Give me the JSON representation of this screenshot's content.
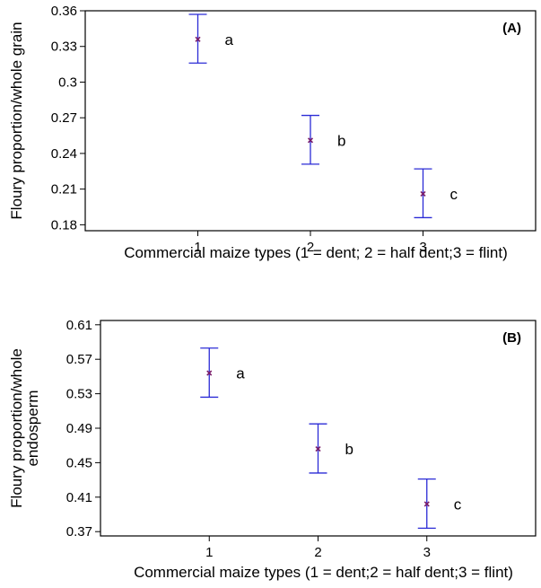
{
  "colors": {
    "errorbar": "#2b2bd6",
    "mean_marker": "#7a1d6a",
    "axis": "#000000"
  },
  "chart_data": [
    {
      "type": "scatter",
      "panel_label": "(A)",
      "xlabel": "Commercial maize types (1 = dent; 2 = half dent;3 = flint)",
      "ylabel": "Floury proportion/whole grain",
      "xlim": [
        0,
        4
      ],
      "ylim": [
        0.175,
        0.36
      ],
      "x_ticks": [
        1,
        2,
        3
      ],
      "x_tick_labels": [
        "1",
        "2",
        "3"
      ],
      "y_ticks": [
        0.18,
        0.21,
        0.24,
        0.27,
        0.3,
        0.33,
        0.36
      ],
      "y_tick_labels": [
        "0.18",
        "0.21",
        "0.24",
        "0.27",
        "0.3",
        "0.33",
        "0.36"
      ],
      "grid": false,
      "points": [
        {
          "x": 1,
          "mean": 0.336,
          "lower": 0.316,
          "upper": 0.357,
          "letter": "a"
        },
        {
          "x": 2,
          "mean": 0.251,
          "lower": 0.231,
          "upper": 0.272,
          "letter": "b"
        },
        {
          "x": 3,
          "mean": 0.206,
          "lower": 0.186,
          "upper": 0.227,
          "letter": "c"
        }
      ]
    },
    {
      "type": "scatter",
      "panel_label": "(B)",
      "xlabel": "Commercial maize types (1 = dent;2 = half dent;3 = flint)",
      "ylabel": [
        "Floury proportion/whole",
        "endosperm"
      ],
      "xlim": [
        0,
        4
      ],
      "ylim": [
        0.365,
        0.615
      ],
      "x_ticks": [
        1,
        2,
        3
      ],
      "x_tick_labels": [
        "1",
        "2",
        "3"
      ],
      "y_ticks": [
        0.37,
        0.41,
        0.45,
        0.49,
        0.53,
        0.57,
        0.61
      ],
      "y_tick_labels": [
        "0.37",
        "0.41",
        "0.45",
        "0.49",
        "0.53",
        "0.57",
        "0.61"
      ],
      "grid": false,
      "points": [
        {
          "x": 1,
          "mean": 0.554,
          "lower": 0.526,
          "upper": 0.583,
          "letter": "a"
        },
        {
          "x": 2,
          "mean": 0.466,
          "lower": 0.438,
          "upper": 0.495,
          "letter": "b"
        },
        {
          "x": 3,
          "mean": 0.402,
          "lower": 0.374,
          "upper": 0.431,
          "letter": "c"
        }
      ]
    }
  ]
}
